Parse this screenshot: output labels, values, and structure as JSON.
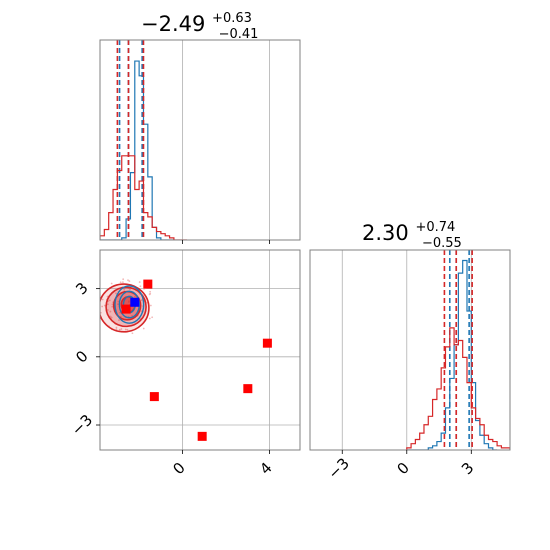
{
  "colors": {
    "red": "#d62728",
    "blue": "#1f77b4",
    "marker_red": "#ff0000",
    "marker_blue": "#0000ff",
    "grid": "#b0b0b0",
    "frame": "#808080"
  },
  "chart_data": [
    {
      "type": "histogram",
      "panel": "marginal-param-1",
      "title": {
        "value": "−2.49",
        "plus": "+0.63",
        "minus": "−0.41"
      },
      "xlim": [
        -3.8,
        5.4
      ],
      "xticks": [
        0,
        4
      ],
      "xtick_labels": [],
      "grid": true,
      "series": [
        {
          "name": "",
          "color": "#1f77b4",
          "quantiles": [
            -2.9,
            -2.49,
            -1.86
          ],
          "edges": [
            -3.8,
            -3.6,
            -3.4,
            -3.2,
            -3.0,
            -2.8,
            -2.6,
            -2.4,
            -2.2,
            -2.0,
            -1.8,
            -1.6,
            -1.4,
            -1.2,
            -1.0,
            -0.8,
            -0.6,
            -0.4
          ],
          "counts": [
            0,
            0,
            0,
            0,
            0,
            0.01,
            0.1,
            0.32,
            0.85,
            0.78,
            0.55,
            0.3,
            0.06,
            0.01,
            0,
            0,
            0
          ]
        },
        {
          "name": "",
          "color": "#d62728",
          "quantiles": [
            -3.0,
            -2.49,
            -1.8
          ],
          "edges": [
            -3.8,
            -3.6,
            -3.4,
            -3.2,
            -3.0,
            -2.8,
            -2.6,
            -2.4,
            -2.2,
            -2.0,
            -1.8,
            -1.6,
            -1.4,
            -1.2,
            -1.0,
            -0.8,
            -0.6,
            -0.4,
            -0.2,
            0.0,
            0.2
          ],
          "counts": [
            0.02,
            0.05,
            0.13,
            0.24,
            0.33,
            0.4,
            0.4,
            0.4,
            0.24,
            0.28,
            0.13,
            0.11,
            0.06,
            0.04,
            0.03,
            0.02,
            0.01,
            0,
            0,
            0
          ]
        }
      ]
    },
    {
      "type": "histogram",
      "panel": "marginal-param-2",
      "title": {
        "value": "2.30",
        "plus": "+0.74",
        "minus": "−0.55"
      },
      "xlim": [
        -4.5,
        4.8
      ],
      "xticks": [
        -3,
        0,
        3
      ],
      "xtick_labels": [
        "−3",
        "0",
        "3"
      ],
      "grid": true,
      "series": [
        {
          "name": "",
          "color": "#1f77b4",
          "quantiles": [
            2.0,
            2.3,
            2.9
          ],
          "edges": [
            0.0,
            0.2,
            0.4,
            0.6,
            0.8,
            1.0,
            1.2,
            1.4,
            1.6,
            1.8,
            2.0,
            2.2,
            2.4,
            2.6,
            2.8,
            3.0,
            3.2,
            3.4,
            3.6,
            3.8,
            4.0,
            4.2
          ],
          "counts": [
            0,
            0,
            0,
            0,
            0,
            0.01,
            0.02,
            0.04,
            0.08,
            0.2,
            0.34,
            0.5,
            0.84,
            0.9,
            0.66,
            0.32,
            0.14,
            0.07,
            0.03,
            0.01,
            0
          ]
        },
        {
          "name": "",
          "color": "#d62728",
          "quantiles": [
            1.75,
            2.3,
            3.04
          ],
          "edges": [
            0.0,
            0.2,
            0.4,
            0.6,
            0.8,
            1.0,
            1.2,
            1.4,
            1.6,
            1.8,
            2.0,
            2.2,
            2.4,
            2.6,
            2.8,
            3.0,
            3.2,
            3.4,
            3.6,
            3.8,
            4.0,
            4.2,
            4.4,
            4.6,
            4.8
          ],
          "counts": [
            0.01,
            0.03,
            0.05,
            0.08,
            0.12,
            0.16,
            0.24,
            0.29,
            0.39,
            0.49,
            0.58,
            0.5,
            0.52,
            0.44,
            0.32,
            0.2,
            0.15,
            0.12,
            0.07,
            0.05,
            0.04,
            0.02,
            0.01,
            0.01
          ]
        }
      ]
    },
    {
      "type": "scatter",
      "panel": "joint",
      "xlim": [
        -3.8,
        5.4
      ],
      "ylim": [
        -4.1,
        4.7
      ],
      "xticks": [
        0,
        4
      ],
      "xtick_labels": [
        "0",
        "4"
      ],
      "yticks": [
        -3,
        0,
        3
      ],
      "ytick_labels": [
        "−3",
        "0",
        "3"
      ],
      "grid": true,
      "red_contours": [
        {
          "cx": -2.7,
          "cy": 2.15,
          "rx": 1.15,
          "ry": 1.05
        },
        {
          "cx": -2.6,
          "cy": 2.2,
          "rx": 0.92,
          "ry": 0.86
        },
        {
          "cx": -2.55,
          "cy": 2.25,
          "rx": 0.62,
          "ry": 0.62
        },
        {
          "cx": -2.5,
          "cy": 2.3,
          "rx": 0.32,
          "ry": 0.34
        }
      ],
      "blue_contours": [
        {
          "cx": -2.45,
          "cy": 2.3,
          "rx": 0.66,
          "ry": 0.82
        },
        {
          "cx": -2.45,
          "cy": 2.3,
          "rx": 0.46,
          "ry": 0.58
        },
        {
          "cx": -2.45,
          "cy": 2.3,
          "rx": 0.27,
          "ry": 0.36
        }
      ],
      "red_markers": [
        {
          "x": -1.6,
          "y": 3.2
        },
        {
          "x": -2.6,
          "y": 2.1
        },
        {
          "x": -1.3,
          "y": -1.75
        },
        {
          "x": 0.9,
          "y": -3.5
        },
        {
          "x": 3.0,
          "y": -1.4
        },
        {
          "x": 3.9,
          "y": 0.6
        }
      ],
      "blue_markers": [
        {
          "x": -2.2,
          "y": 2.4
        }
      ]
    }
  ]
}
